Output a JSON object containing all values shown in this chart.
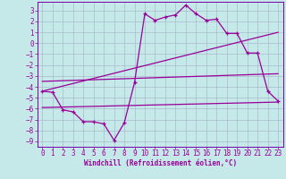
{
  "title": "",
  "xlabel": "Windchill (Refroidissement éolien,°C)",
  "background_color": "#c5e8e8",
  "grid_color": "#aabbcc",
  "line_color": "#990099",
  "spine_color": "#7700aa",
  "xlim": [
    -0.5,
    23.5
  ],
  "ylim": [
    -9.5,
    3.8
  ],
  "xticks": [
    0,
    1,
    2,
    3,
    4,
    5,
    6,
    7,
    8,
    9,
    10,
    11,
    12,
    13,
    14,
    15,
    16,
    17,
    18,
    19,
    20,
    21,
    22,
    23
  ],
  "yticks": [
    3,
    2,
    1,
    0,
    -1,
    -2,
    -3,
    -4,
    -5,
    -6,
    -7,
    -8,
    -9
  ],
  "data_x": [
    0,
    1,
    2,
    3,
    4,
    5,
    6,
    7,
    8,
    9,
    10,
    11,
    12,
    13,
    14,
    15,
    16,
    17,
    18,
    19,
    20,
    21,
    22,
    23
  ],
  "data_y": [
    -4.4,
    -4.5,
    -6.1,
    -6.3,
    -7.2,
    -7.2,
    -7.4,
    -8.9,
    -7.3,
    -3.6,
    2.7,
    2.1,
    2.4,
    2.6,
    3.5,
    2.7,
    2.1,
    2.2,
    0.9,
    0.9,
    -0.9,
    -0.9,
    -4.4,
    -5.3
  ],
  "line1_x": [
    0,
    23
  ],
  "line1_y": [
    -4.4,
    1.0
  ],
  "line2_x": [
    0,
    23
  ],
  "line2_y": [
    -3.5,
    -2.8
  ],
  "line3_x": [
    0,
    23
  ],
  "line3_y": [
    -5.9,
    -5.4
  ],
  "xlabel_fontsize": 5.5,
  "tick_fontsize": 5.5
}
